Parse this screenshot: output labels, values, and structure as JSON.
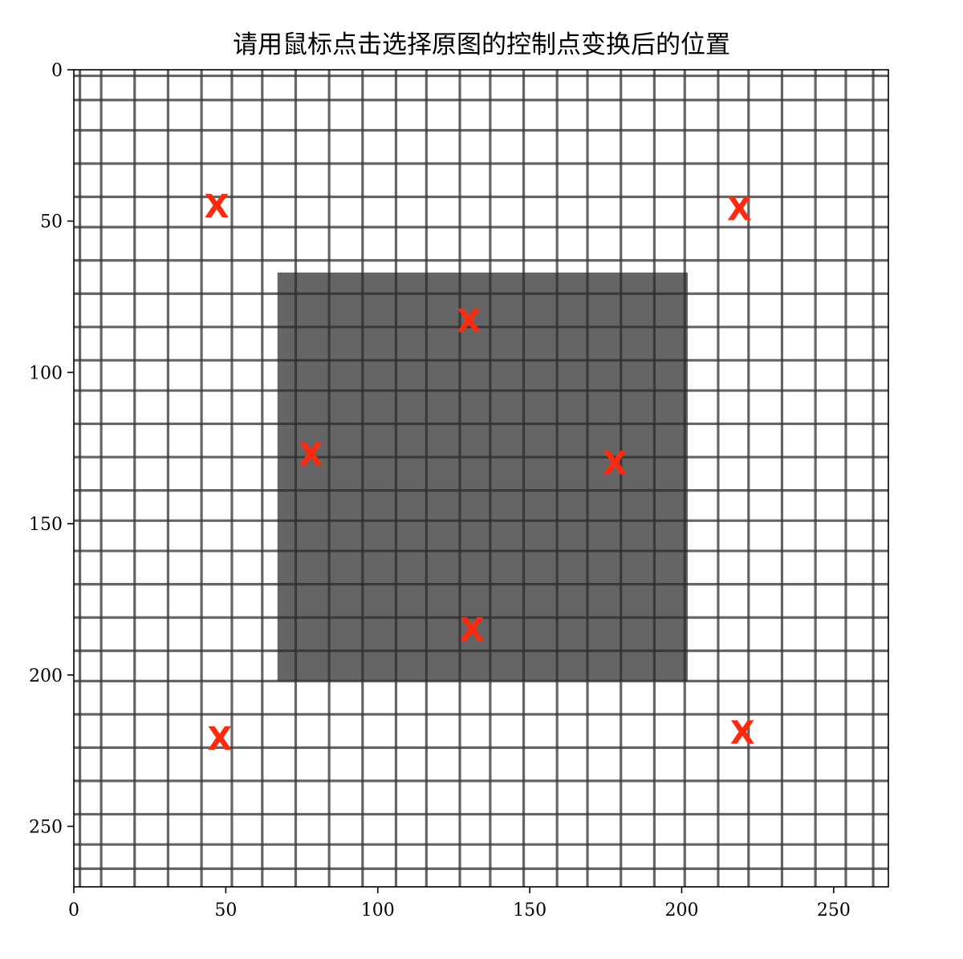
{
  "chart_data": {
    "type": "scatter",
    "title": "请用鼠标点击选择原图的控制点变换后的位置",
    "image": {
      "description_name": "checkerboard-calibration-image",
      "width_units": 268,
      "height_units": 270,
      "inner_square": {
        "x0": 67,
        "y0": 67,
        "x1": 202,
        "y1": 202
      }
    },
    "xlim": [
      0,
      268
    ],
    "ylim": [
      270,
      0
    ],
    "x_ticks": [
      0,
      50,
      100,
      150,
      200,
      250
    ],
    "y_ticks": [
      0,
      50,
      100,
      150,
      200,
      250
    ],
    "x_tick_labels": [
      "0",
      "50",
      "100",
      "150",
      "200",
      "250"
    ],
    "y_tick_labels": [
      "0",
      "50",
      "100",
      "150",
      "200",
      "250"
    ],
    "grid_lines": {
      "vertical": [
        2,
        9,
        20,
        31,
        42,
        52,
        62,
        73,
        84,
        95,
        106,
        116,
        127,
        137,
        148,
        159,
        169,
        180,
        191,
        201,
        212,
        222,
        233,
        244,
        254,
        263
      ],
      "horizontal": [
        2,
        10,
        20,
        31,
        42,
        52,
        63,
        74,
        85,
        96,
        106,
        117,
        128,
        139,
        149,
        159,
        170,
        181,
        192,
        202,
        213,
        224,
        235,
        246,
        256,
        264
      ]
    },
    "marker_symbol": "X",
    "marker_color": "#ff2a0e",
    "points": [
      {
        "x": 47,
        "y": 45
      },
      {
        "x": 219,
        "y": 46
      },
      {
        "x": 130,
        "y": 83
      },
      {
        "x": 78,
        "y": 127
      },
      {
        "x": 178,
        "y": 130
      },
      {
        "x": 131,
        "y": 185
      },
      {
        "x": 48,
        "y": 221
      },
      {
        "x": 220,
        "y": 219
      }
    ]
  },
  "colors": {
    "background": "#ffffff",
    "grid_line": "#3a3a3a",
    "inner_square": "#2a2a2a",
    "marker": "#ff2a0e",
    "axis": "#000000"
  }
}
